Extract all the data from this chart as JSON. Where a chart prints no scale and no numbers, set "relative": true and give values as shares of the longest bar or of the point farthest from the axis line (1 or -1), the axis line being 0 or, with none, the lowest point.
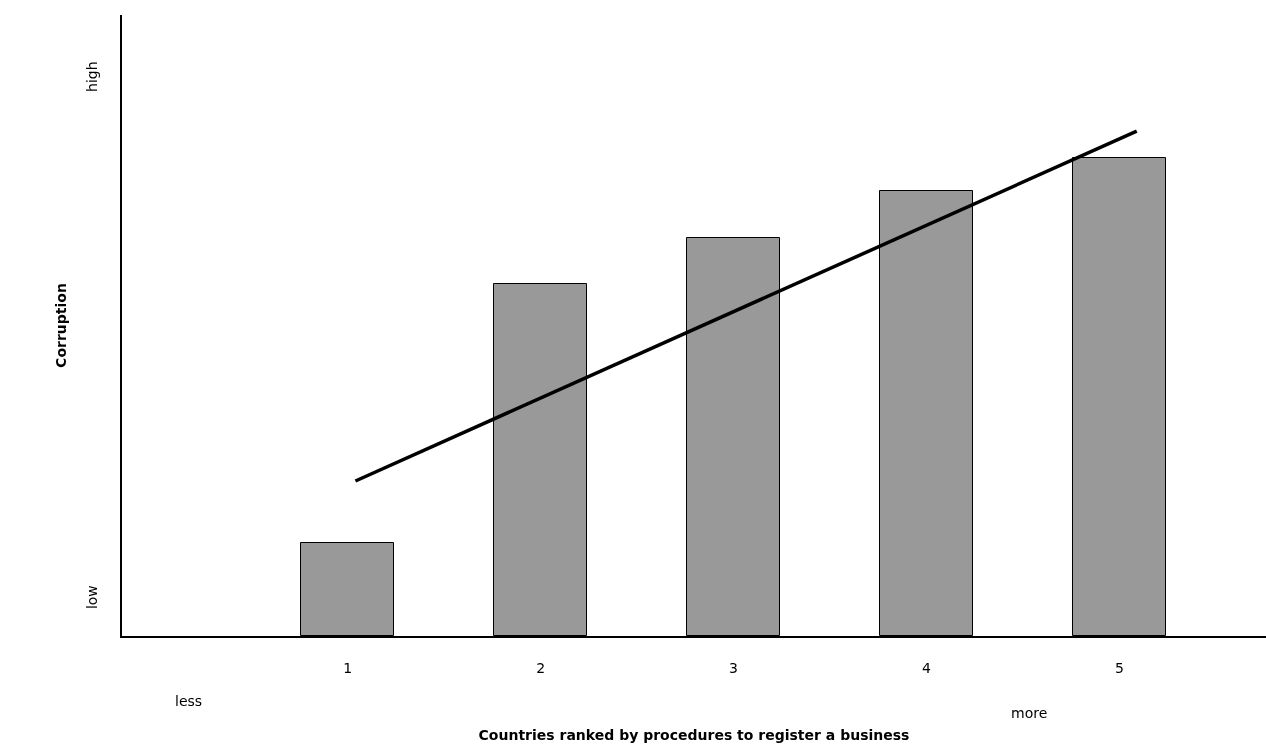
{
  "chart_data": {
    "type": "bar",
    "relative": true,
    "xlabel": "Countries ranked by procedures to register a business",
    "ylabel": "Corruption",
    "x": [
      1,
      2,
      3,
      4,
      5
    ],
    "xlim": [
      -0.17,
      5.76
    ],
    "xticks": [
      1,
      2,
      3,
      4,
      5
    ],
    "series": [
      {
        "color": "#999999",
        "values": [
          0.184,
          0.697,
          0.789,
          0.881,
          0.947
        ]
      },
      {
        "type": "line",
        "color": "#000000",
        "x": [
          1.04,
          5.09
        ],
        "values": [
          0.307,
          1.0
        ]
      }
    ],
    "annotations": [
      "high",
      "low",
      "less",
      "more"
    ]
  }
}
